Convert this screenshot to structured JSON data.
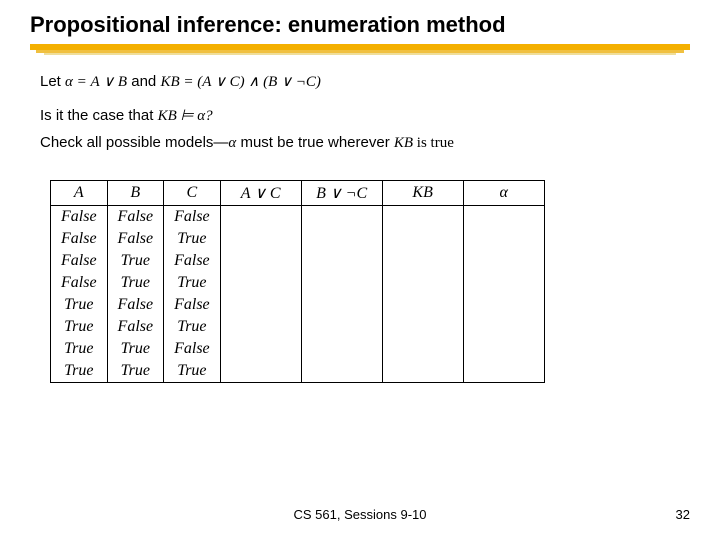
{
  "title": "Propositional inference: enumeration method",
  "lines": {
    "let_prefix": "Let ",
    "let_math": "α = A ∨ B",
    "let_mid": " and ",
    "let_math2": "KB = (A ∨ C) ∧ (B ∨ ¬C)",
    "q1_prefix": "Is it the case that ",
    "q1_math": "KB ⊨ α?",
    "q2_prefix": "Check all possible models—",
    "q2_mid": "α",
    "q2_after": " must be true wherever ",
    "q2_kb": "KB",
    "q2_end": " is true"
  },
  "table": {
    "headers": [
      "A",
      "B",
      "C",
      "A ∨ C",
      "B ∨ ¬C",
      "KB",
      "α"
    ],
    "rows": [
      [
        "False",
        "False",
        "False",
        "",
        "",
        "",
        ""
      ],
      [
        "False",
        "False",
        "True",
        "",
        "",
        "",
        ""
      ],
      [
        "False",
        "True",
        "False",
        "",
        "",
        "",
        ""
      ],
      [
        "False",
        "True",
        "True",
        "",
        "",
        "",
        ""
      ],
      [
        "True",
        "False",
        "False",
        "",
        "",
        "",
        ""
      ],
      [
        "True",
        "False",
        "True",
        "",
        "",
        "",
        ""
      ],
      [
        "True",
        "True",
        "False",
        "",
        "",
        "",
        ""
      ],
      [
        "True",
        "True",
        "True",
        "",
        "",
        "",
        ""
      ]
    ]
  },
  "footer": "CS 561,  Sessions 9-10",
  "page": "32",
  "colors": {
    "underline1": "#f4b000",
    "underline2": "#f0c040",
    "underline3": "#e8d070"
  }
}
